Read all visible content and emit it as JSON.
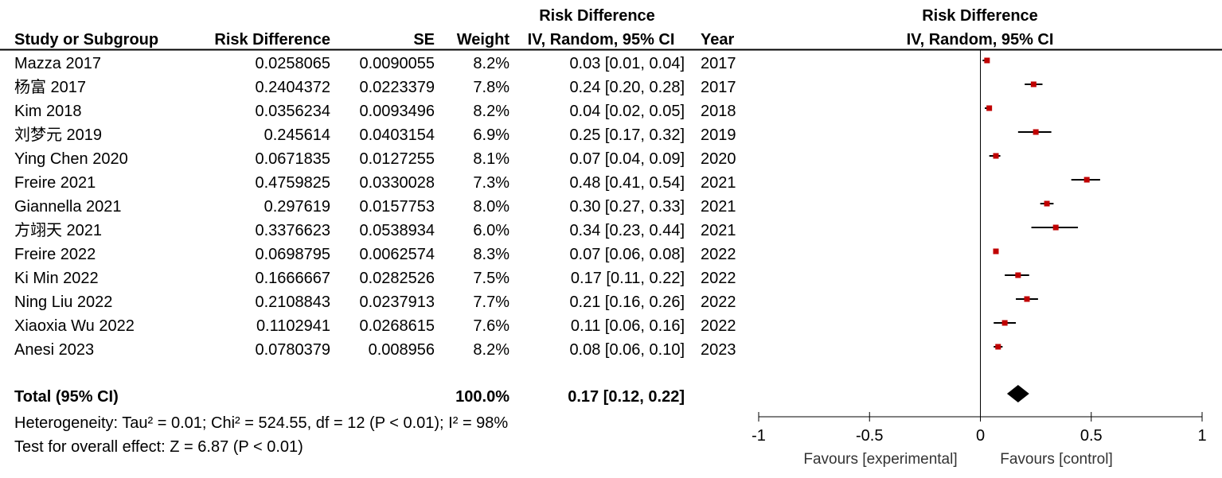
{
  "header": {
    "group_label_table": "Risk Difference",
    "group_label_plot": "Risk Difference",
    "col_study": "Study or Subgroup",
    "col_rd": "Risk Difference",
    "col_se": "SE",
    "col_weight": "Weight",
    "col_ci": "IV, Random, 95% CI",
    "col_year": "Year",
    "col_plot_ci": "IV, Random, 95% CI"
  },
  "rows": [
    {
      "study": "Mazza 2017",
      "rd": "0.0258065",
      "se": "0.0090055",
      "weight": "8.2%",
      "ci": "0.03 [0.01, 0.04]",
      "year": "2017"
    },
    {
      "study": "杨富 2017",
      "rd": "0.2404372",
      "se": "0.0223379",
      "weight": "7.8%",
      "ci": "0.24 [0.20, 0.28]",
      "year": "2017"
    },
    {
      "study": "Kim 2018",
      "rd": "0.0356234",
      "se": "0.0093496",
      "weight": "8.2%",
      "ci": "0.04 [0.02, 0.05]",
      "year": "2018"
    },
    {
      "study": "刘梦元 2019",
      "rd": "0.245614",
      "se": "0.0403154",
      "weight": "6.9%",
      "ci": "0.25 [0.17, 0.32]",
      "year": "2019"
    },
    {
      "study": "Ying Chen 2020",
      "rd": "0.0671835",
      "se": "0.0127255",
      "weight": "8.1%",
      "ci": "0.07 [0.04, 0.09]",
      "year": "2020"
    },
    {
      "study": "Freire 2021",
      "rd": "0.4759825",
      "se": "0.0330028",
      "weight": "7.3%",
      "ci": "0.48 [0.41, 0.54]",
      "year": "2021"
    },
    {
      "study": "Giannella 2021",
      "rd": "0.297619",
      "se": "0.0157753",
      "weight": "8.0%",
      "ci": "0.30 [0.27, 0.33]",
      "year": "2021"
    },
    {
      "study": "方翊天 2021",
      "rd": "0.3376623",
      "se": "0.0538934",
      "weight": "6.0%",
      "ci": "0.34 [0.23, 0.44]",
      "year": "2021"
    },
    {
      "study": "Freire 2022",
      "rd": "0.0698795",
      "se": "0.0062574",
      "weight": "8.3%",
      "ci": "0.07 [0.06, 0.08]",
      "year": "2022"
    },
    {
      "study": "Ki Min 2022",
      "rd": "0.1666667",
      "se": "0.0282526",
      "weight": "7.5%",
      "ci": "0.17 [0.11, 0.22]",
      "year": "2022"
    },
    {
      "study": "Ning Liu 2022",
      "rd": "0.2108843",
      "se": "0.0237913",
      "weight": "7.7%",
      "ci": "0.21 [0.16, 0.26]",
      "year": "2022"
    },
    {
      "study": "Xiaoxia Wu 2022",
      "rd": "0.1102941",
      "se": "0.0268615",
      "weight": "7.6%",
      "ci": "0.11 [0.06, 0.16]",
      "year": "2022"
    },
    {
      "study": "Anesi 2023",
      "rd": "0.0780379",
      "se": "0.008956",
      "weight": "8.2%",
      "ci": "0.08 [0.06, 0.10]",
      "year": "2023"
    }
  ],
  "total": {
    "label": "Total (95% CI)",
    "weight": "100.0%",
    "ci": "0.17 [0.12, 0.22]"
  },
  "footer": {
    "heterogeneity": "Heterogeneity: Tau² = 0.01; Chi² = 524.55, df = 12 (P < 0.01); I² = 98%",
    "overall_effect": "Test for overall effect: Z = 6.87 (P < 0.01)"
  },
  "chart_data": {
    "type": "forest",
    "title": "Risk Difference",
    "subtitle": "IV, Random, 95% CI",
    "xlim": [
      -1,
      1
    ],
    "x_ticks": [
      -1,
      -0.5,
      0,
      0.5,
      1
    ],
    "x_tick_labels": [
      "-1",
      "-0.5",
      "0",
      "0.5",
      "1"
    ],
    "favours_left": "Favours [experimental]",
    "favours_right": "Favours [control]",
    "marker_color": "#c00000",
    "studies": [
      {
        "name": "Mazza 2017",
        "estimate": 0.03,
        "lower": 0.01,
        "upper": 0.04
      },
      {
        "name": "杨富 2017",
        "estimate": 0.24,
        "lower": 0.2,
        "upper": 0.28
      },
      {
        "name": "Kim 2018",
        "estimate": 0.04,
        "lower": 0.02,
        "upper": 0.05
      },
      {
        "name": "刘梦元 2019",
        "estimate": 0.25,
        "lower": 0.17,
        "upper": 0.32
      },
      {
        "name": "Ying Chen 2020",
        "estimate": 0.07,
        "lower": 0.04,
        "upper": 0.09
      },
      {
        "name": "Freire 2021",
        "estimate": 0.48,
        "lower": 0.41,
        "upper": 0.54
      },
      {
        "name": "Giannella 2021",
        "estimate": 0.3,
        "lower": 0.27,
        "upper": 0.33
      },
      {
        "name": "方翊天 2021",
        "estimate": 0.34,
        "lower": 0.23,
        "upper": 0.44
      },
      {
        "name": "Freire 2022",
        "estimate": 0.07,
        "lower": 0.06,
        "upper": 0.08
      },
      {
        "name": "Ki Min 2022",
        "estimate": 0.17,
        "lower": 0.11,
        "upper": 0.22
      },
      {
        "name": "Ning Liu 2022",
        "estimate": 0.21,
        "lower": 0.16,
        "upper": 0.26
      },
      {
        "name": "Xiaoxia Wu 2022",
        "estimate": 0.11,
        "lower": 0.06,
        "upper": 0.16
      },
      {
        "name": "Anesi 2023",
        "estimate": 0.08,
        "lower": 0.06,
        "upper": 0.1
      }
    ],
    "pooled": {
      "estimate": 0.17,
      "lower": 0.12,
      "upper": 0.22
    }
  }
}
